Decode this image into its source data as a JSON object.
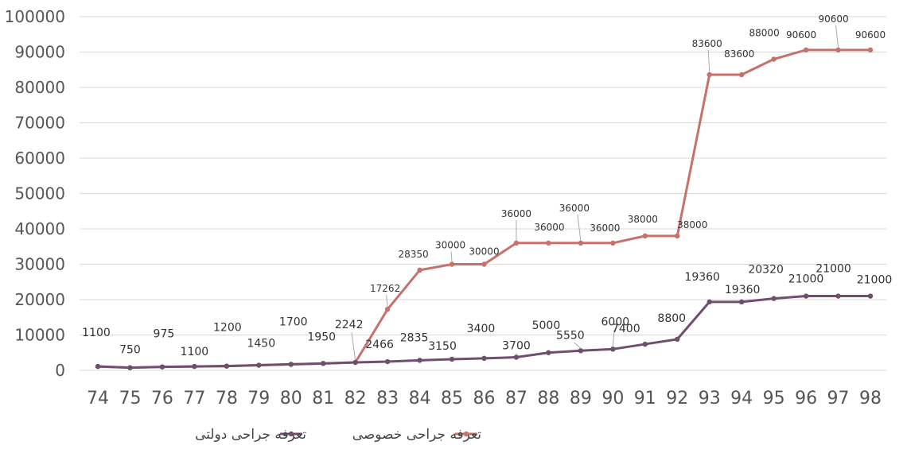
{
  "chart_data": {
    "type": "line",
    "categories": [
      "74",
      "75",
      "76",
      "77",
      "78",
      "79",
      "80",
      "81",
      "82",
      "83",
      "84",
      "85",
      "86",
      "87",
      "88",
      "89",
      "90",
      "91",
      "92",
      "93",
      "94",
      "95",
      "96",
      "97",
      "98"
    ],
    "series": [
      {
        "name": "تعرفه جراحی دولتی",
        "color": "#6e4f6e",
        "values": [
          1100,
          750,
          975,
          1100,
          1200,
          1450,
          1700,
          1950,
          2242,
          2466,
          2835,
          3150,
          3400,
          3700,
          5000,
          5550,
          6000,
          7400,
          8800,
          19360,
          19360,
          20320,
          21000,
          21000,
          21000
        ]
      },
      {
        "name": "تعرفه جراحی خصوصی",
        "color": "#c8706a",
        "values": [
          1100,
          750,
          975,
          1100,
          1200,
          1450,
          1700,
          1950,
          2242,
          17262,
          28350,
          30000,
          30000,
          36000,
          36000,
          36000,
          36000,
          38000,
          38000,
          83600,
          83600,
          88000,
          90600,
          90600,
          90600
        ],
        "labels": [
          "",
          "",
          "",
          "",
          "",
          "",
          "",
          "",
          "",
          "17262",
          "28350",
          "30000",
          "30000",
          "36000",
          "36000",
          "36000",
          "36000",
          "38000",
          "38000",
          "83600",
          "83600",
          "88000",
          "90600",
          "90600",
          "90600"
        ]
      }
    ],
    "y_ticks": [
      "0",
      "10000",
      "20000",
      "30000",
      "40000",
      "50000",
      "60000",
      "70000",
      "80000",
      "90000",
      "100000"
    ],
    "ylim": [
      0,
      100000
    ],
    "grid": true,
    "legend_position": "bottom"
  }
}
